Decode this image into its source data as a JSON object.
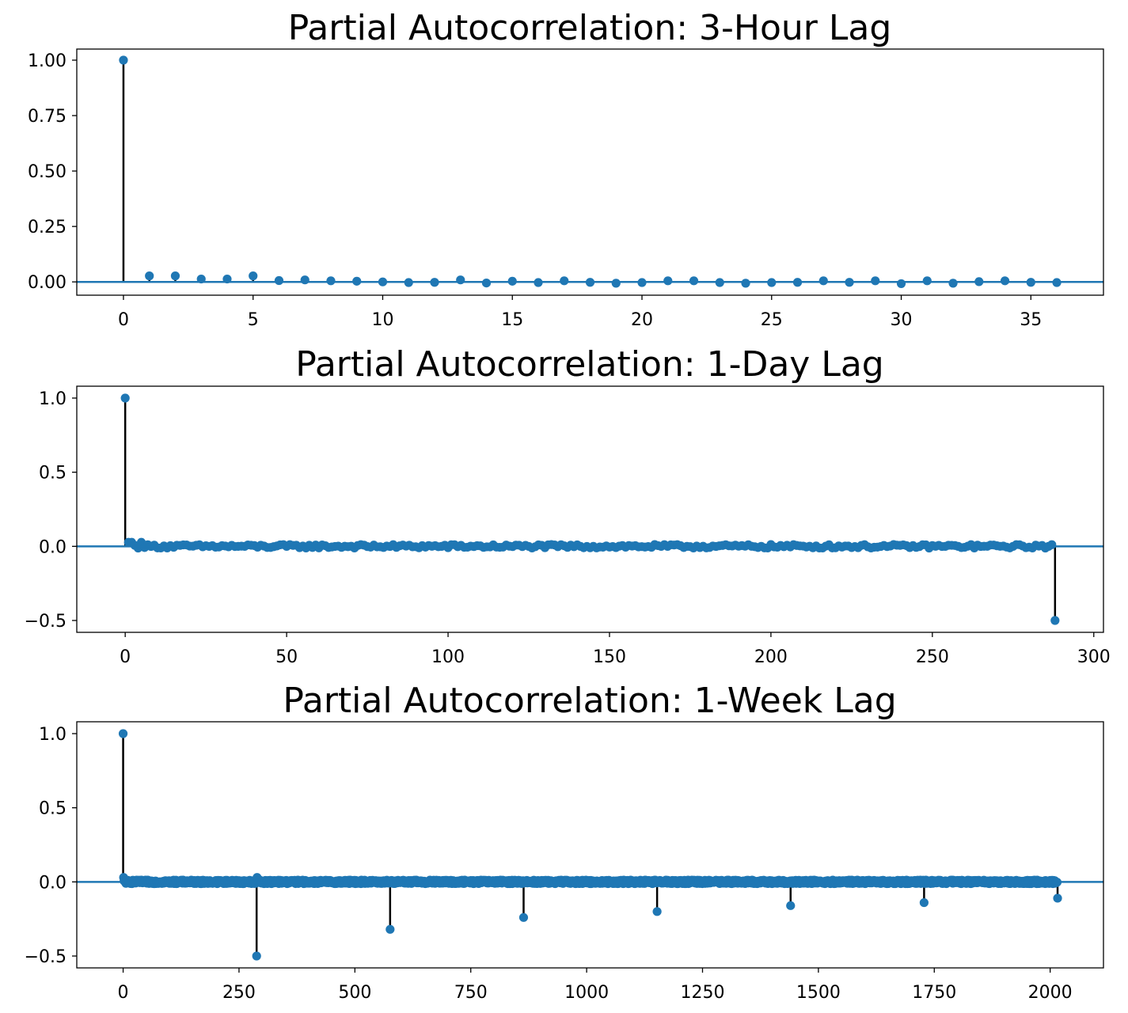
{
  "colors": {
    "marker": "#1f77b4",
    "stem": "#000000",
    "baseline": "#1f77b4"
  },
  "chart_data": [
    {
      "type": "scatter",
      "title": "Partial Autocorrelation: 3-Hour Lag",
      "xlabel": "",
      "ylabel": "",
      "xlim": [
        -1.8,
        37.8
      ],
      "ylim": [
        -0.06,
        1.05
      ],
      "xticks": [
        0,
        5,
        10,
        15,
        20,
        25,
        30,
        35
      ],
      "xtick_labels": [
        "0",
        "5",
        "10",
        "15",
        "20",
        "25",
        "30",
        "35"
      ],
      "yticks": [
        0,
        0.25,
        0.5,
        0.75,
        1.0
      ],
      "ytick_labels": [
        "0.00",
        "0.25",
        "0.50",
        "0.75",
        "1.00"
      ],
      "grid": false,
      "series": [
        {
          "x": [
            0,
            1,
            2,
            3,
            4,
            5,
            6,
            7,
            8,
            9,
            10,
            11,
            12,
            13,
            14,
            15,
            16,
            17,
            18,
            19,
            20,
            21,
            22,
            23,
            24,
            25,
            26,
            27,
            28,
            29,
            30,
            31,
            32,
            33,
            34,
            35,
            36
          ],
          "y": [
            1.0,
            0.027,
            0.027,
            0.013,
            0.013,
            0.027,
            0.006,
            0.009,
            0.005,
            0.003,
            0.0,
            -0.003,
            -0.002,
            0.009,
            -0.005,
            0.003,
            -0.003,
            0.005,
            -0.002,
            -0.006,
            -0.003,
            0.005,
            0.005,
            -0.003,
            -0.006,
            -0.003,
            -0.002,
            0.005,
            -0.002,
            0.005,
            -0.008,
            0.005,
            -0.006,
            0.001,
            0.005,
            -0.002,
            -0.003
          ]
        }
      ]
    },
    {
      "type": "scatter",
      "title": "Partial Autocorrelation: 1-Day Lag",
      "xlabel": "",
      "ylabel": "",
      "xlim": [
        -15,
        303
      ],
      "ylim": [
        -0.58,
        1.08
      ],
      "xticks": [
        0,
        50,
        100,
        150,
        200,
        250,
        300
      ],
      "xtick_labels": [
        "0",
        "50",
        "100",
        "150",
        "200",
        "250",
        "300"
      ],
      "yticks": [
        -0.5,
        0.0,
        0.5,
        1.0
      ],
      "ytick_labels": [
        "−0.5",
        "0.0",
        "0.5",
        "1.0"
      ],
      "grid": false,
      "series": [
        {
          "x_range": [
            0,
            288
          ],
          "noise_amplitude": 0.012,
          "spikes": [
            {
              "x": 0,
              "y": 1.0
            },
            {
              "x": 1,
              "y": 0.027
            },
            {
              "x": 2,
              "y": 0.027
            },
            {
              "x": 5,
              "y": 0.027
            },
            {
              "x": 288,
              "y": -0.5
            }
          ]
        }
      ]
    },
    {
      "type": "scatter",
      "title": "Partial Autocorrelation: 1-Week Lag",
      "xlabel": "",
      "ylabel": "",
      "xlim": [
        -100,
        2115
      ],
      "ylim": [
        -0.58,
        1.08
      ],
      "xticks": [
        0,
        250,
        500,
        750,
        1000,
        1250,
        1500,
        1750,
        2000
      ],
      "xtick_labels": [
        "0",
        "250",
        "500",
        "750",
        "1000",
        "1250",
        "1500",
        "1750",
        "2000"
      ],
      "yticks": [
        -0.5,
        0.0,
        0.5,
        1.0
      ],
      "ytick_labels": [
        "−0.5",
        "0.0",
        "0.5",
        "1.0"
      ],
      "grid": false,
      "series": [
        {
          "x_range": [
            0,
            2016
          ],
          "noise_amplitude": 0.012,
          "spikes": [
            {
              "x": 0,
              "y": 1.0
            },
            {
              "x": 1,
              "y": 0.03
            },
            {
              "x": 288,
              "y": -0.5
            },
            {
              "x": 289,
              "y": 0.03
            },
            {
              "x": 576,
              "y": -0.32
            },
            {
              "x": 864,
              "y": -0.24
            },
            {
              "x": 1152,
              "y": -0.2
            },
            {
              "x": 1440,
              "y": -0.16
            },
            {
              "x": 1728,
              "y": -0.14
            },
            {
              "x": 2016,
              "y": -0.11
            }
          ]
        }
      ]
    }
  ]
}
